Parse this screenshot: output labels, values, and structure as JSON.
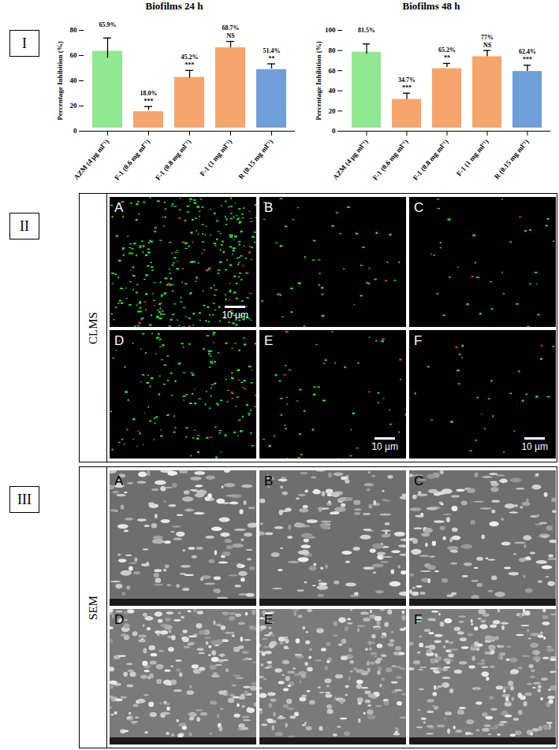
{
  "chart_data": [
    {
      "type": "bar",
      "title": "Biofilms 24 h",
      "y_label": "Percentage Inhibition (%)",
      "categories": [
        "AZM (4 µg ml⁻¹)",
        "F-1 (0.6 mg ml⁻¹)",
        "F-1 (0.8 mg ml⁻¹)",
        "F-1 (1 mg ml⁻¹)",
        "R (0.15 mg ml⁻¹)"
      ],
      "values": [
        65.9,
        18.0,
        45.2,
        68.7,
        51.4
      ],
      "value_labels": [
        "65.9%",
        "18.0%",
        "45.2%",
        "68.7%",
        "51.4%"
      ],
      "errors": [
        8,
        1.5,
        3,
        2.5,
        2
      ],
      "significance": [
        null,
        "***",
        "***",
        "NS",
        "**"
      ],
      "colors": [
        "#90e890",
        "#f5a56b",
        "#f5a56b",
        "#f5a56b",
        "#6f9fd8"
      ],
      "ylim": [
        0,
        80
      ],
      "yticks": [
        0,
        20,
        40,
        60,
        80
      ],
      "data_labels": true
    },
    {
      "type": "bar",
      "title": "Biofilms 48 h",
      "y_label": "Percentage Inhibition (%)",
      "categories": [
        "AZM (4 µg ml⁻¹)",
        "F-1 (0.6 mg ml⁻¹)",
        "F-1 (0.8 mg ml⁻¹)",
        "F-1 (1 mg ml⁻¹)",
        "R (0.15 mg ml⁻¹)"
      ],
      "values": [
        81.5,
        34.7,
        65.2,
        77,
        62.4
      ],
      "value_labels": [
        "81.5%",
        "34.7%",
        "65.2%",
        "77%",
        "62.4%"
      ],
      "errors": [
        5,
        3,
        2,
        3,
        3
      ],
      "significance": [
        null,
        "***",
        "**",
        "NS",
        "***"
      ],
      "colors": [
        "#90e890",
        "#f5a56b",
        "#f5a56b",
        "#f5a56b",
        "#6f9fd8"
      ],
      "ylim": [
        0,
        100
      ],
      "yticks": [
        0,
        20,
        40,
        60,
        80,
        100
      ],
      "data_labels": true
    }
  ],
  "figure": {
    "sections": [
      {
        "label": "I"
      },
      {
        "label": "II",
        "title": "CLMS",
        "panels": [
          {
            "label": "A",
            "scale_bar": "10 µm"
          },
          {
            "label": "B"
          },
          {
            "label": "C"
          },
          {
            "label": "D"
          },
          {
            "label": "E",
            "scale_bar": "10 µm"
          },
          {
            "label": "F",
            "scale_bar": "10 µm"
          }
        ]
      },
      {
        "label": "III",
        "title": "SEM",
        "panels": [
          {
            "label": "A"
          },
          {
            "label": "B"
          },
          {
            "label": "C"
          },
          {
            "label": "D"
          },
          {
            "label": "E"
          },
          {
            "label": "F"
          }
        ]
      }
    ]
  }
}
